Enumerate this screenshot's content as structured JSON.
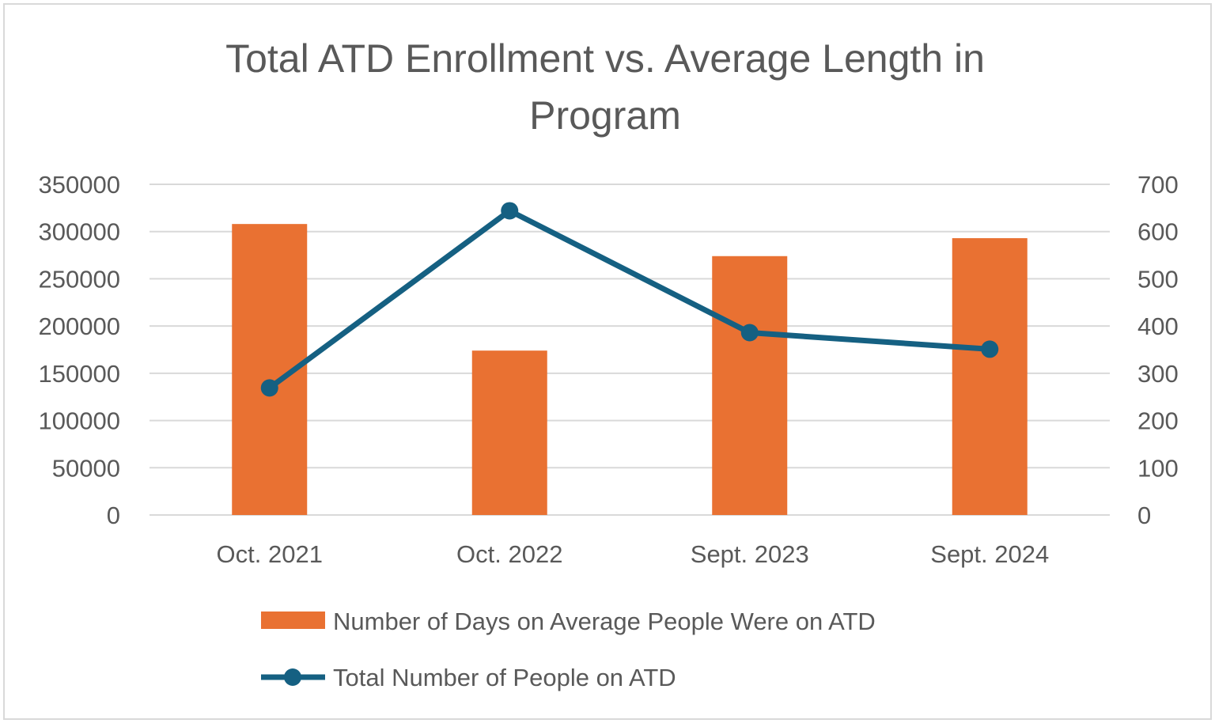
{
  "chart_data": {
    "type": "bar",
    "title_lines": [
      "Total ATD Enrollment vs. Average Length in",
      "Program"
    ],
    "categories": [
      "Oct. 2021",
      "Oct. 2022",
      "Sept. 2023",
      "Sept. 2024"
    ],
    "y_left": {
      "ylim": [
        0,
        350000
      ],
      "ticks": [
        "0",
        "50000",
        "100000",
        "150000",
        "200000",
        "250000",
        "300000",
        "350000"
      ]
    },
    "y_right": {
      "ylim": [
        0,
        700
      ],
      "ticks": [
        "0",
        "100",
        "200",
        "300",
        "400",
        "500",
        "600",
        "700"
      ]
    },
    "series": [
      {
        "name": "Number of Days on Average People Were on ATD",
        "type": "bar",
        "axis": "left",
        "color": "#E97132",
        "values": [
          308000,
          174000,
          274000,
          293000
        ]
      },
      {
        "name": "Total Number of People on ATD",
        "type": "line",
        "axis": "right",
        "color": "#156082",
        "values": [
          269,
          644,
          386,
          351
        ]
      }
    ],
    "grid": true,
    "legend_position": "bottom"
  }
}
